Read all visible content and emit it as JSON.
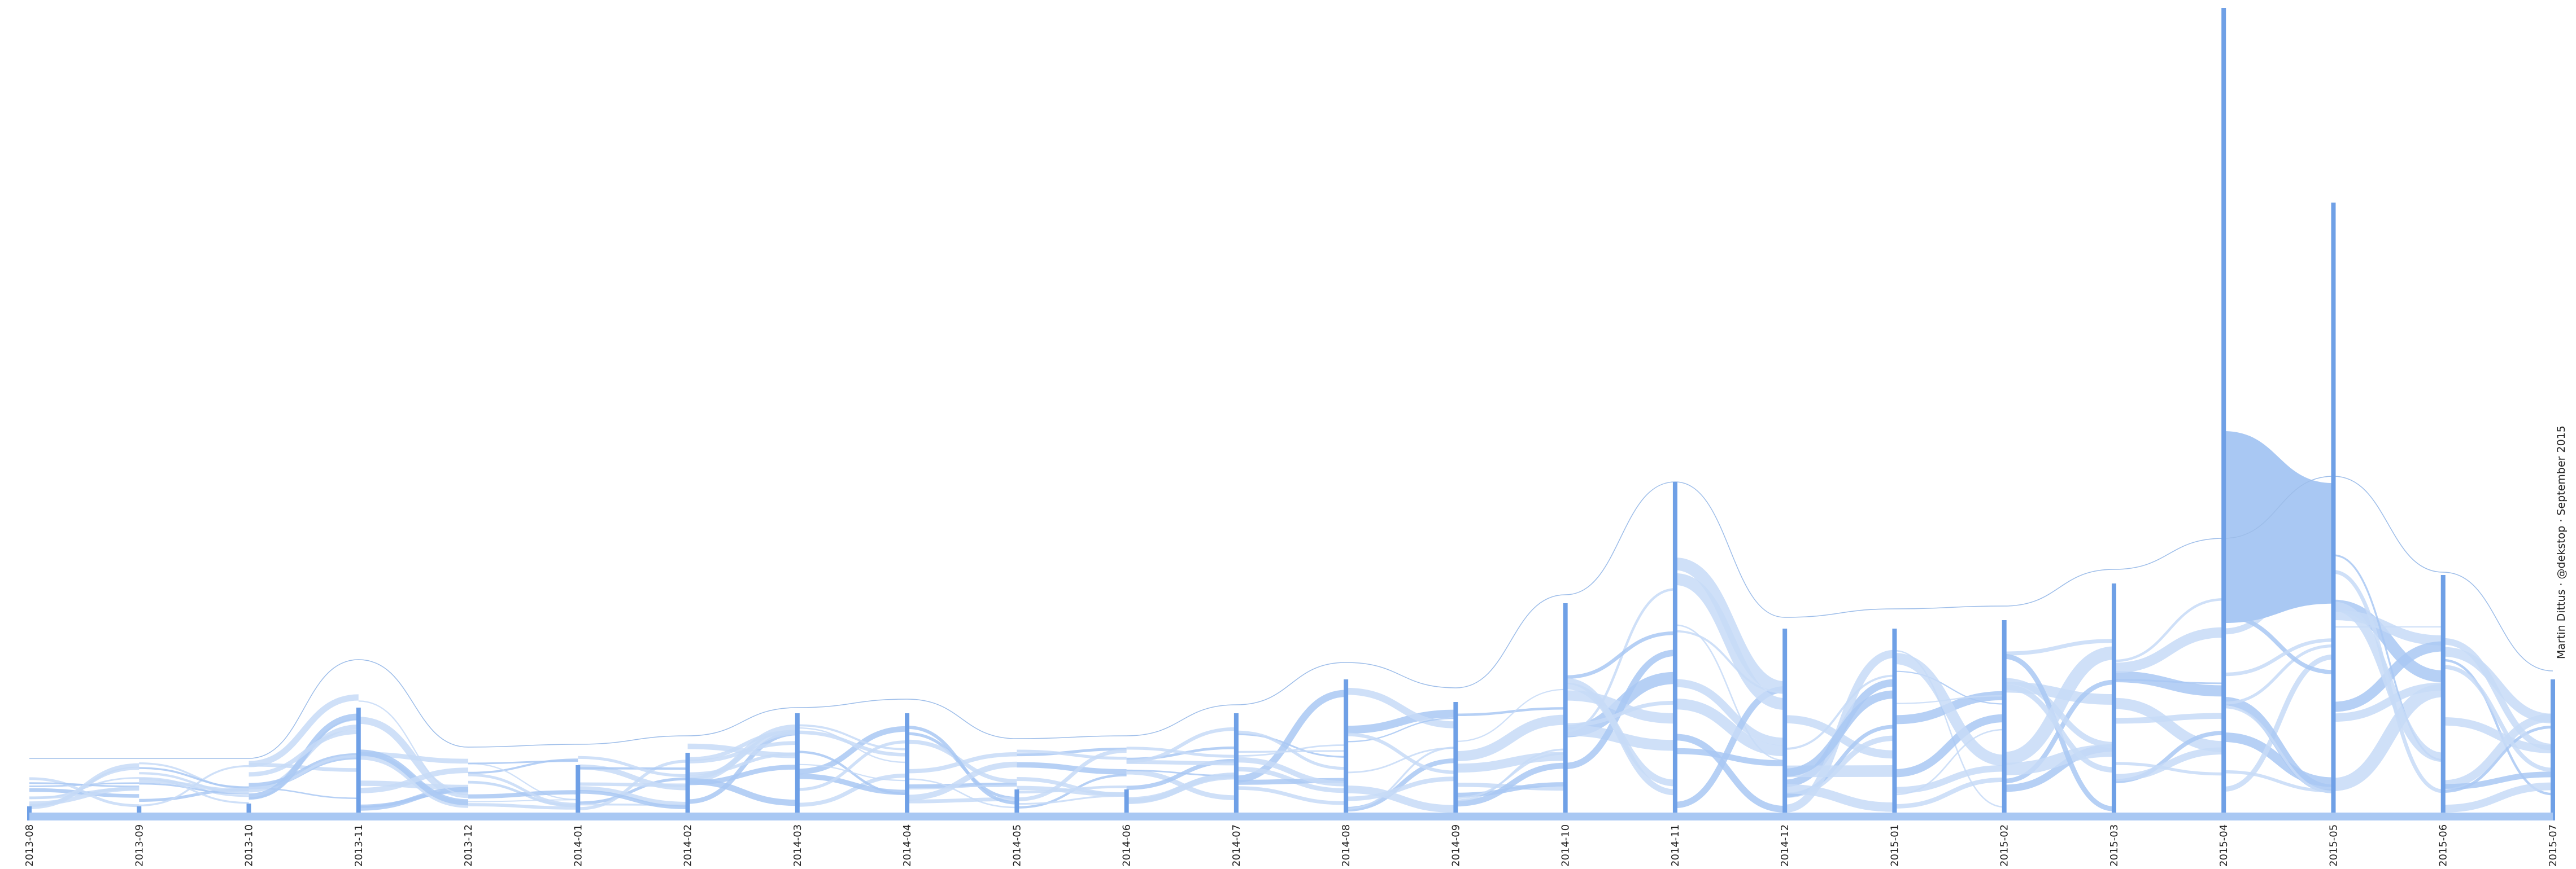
{
  "chart_data": {
    "type": "area",
    "subtype": "alluvial flow diagram",
    "title": "",
    "xlabel": "",
    "ylabel": "",
    "grid": false,
    "legend": "none",
    "credit": "Martin Dittus · @dekstop · September 2015",
    "colors": {
      "flow": "#a9c8f3",
      "flow_light": "#c7dbf7",
      "node": "#6fa0e6",
      "outline": "#9dbde9"
    },
    "categories": [
      "2013-08",
      "2013-09",
      "2013-10",
      "2013-11",
      "2013-12",
      "2014-01",
      "2014-02",
      "2014-03",
      "2014-04",
      "2014-05",
      "2014-06",
      "2014-07",
      "2014-08",
      "2014-09",
      "2014-10",
      "2014-11",
      "2014-12",
      "2015-01",
      "2015-02",
      "2015-03",
      "2015-04",
      "2015-05",
      "2015-06",
      "2015-07"
    ],
    "series": [
      {
        "role": "node_height",
        "values": [
          25,
          25,
          30,
          200,
          10,
          98,
          120,
          190,
          190,
          55,
          55,
          190,
          250,
          210,
          385,
          600,
          340,
          340,
          355,
          420,
          1440,
          1095,
          435,
          250
        ]
      },
      {
        "role": "total_extent",
        "values": [
          110,
          110,
          110,
          285,
          130,
          135,
          150,
          200,
          215,
          145,
          150,
          205,
          280,
          235,
          400,
          600,
          360,
          375,
          380,
          445,
          500,
          610,
          440,
          265
        ]
      }
    ]
  }
}
